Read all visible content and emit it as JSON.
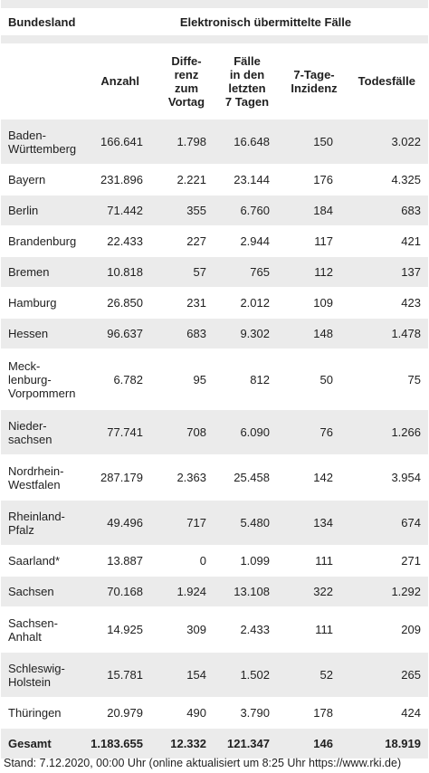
{
  "header": {
    "col0": "Bundesland",
    "group": "Elektronisch übermittelte Fälle",
    "col1": "Anzahl",
    "col2": "Differenz zum Vortag",
    "col2_lines": [
      "Diffe-",
      "renz",
      "zum",
      "Vortag"
    ],
    "col3": "Fälle in den letzten 7 Tagen",
    "col3_lines": [
      "Fälle",
      "in den",
      "letzten",
      "7 Tagen"
    ],
    "col4": "7-Tage-Inzidenz",
    "col4_lines": [
      "7-Tage-",
      "Inzidenz"
    ],
    "col5": "Todesfälle"
  },
  "rows": [
    {
      "name": "Baden-Württemberg",
      "name_lines": [
        "Baden-",
        "Württemberg"
      ],
      "anzahl": "166.641",
      "diff": "1.798",
      "f7": "16.648",
      "inz": "150",
      "tod": "3.022"
    },
    {
      "name": "Bayern",
      "name_lines": [
        "Bayern"
      ],
      "anzahl": "231.896",
      "diff": "2.221",
      "f7": "23.144",
      "inz": "176",
      "tod": "4.325"
    },
    {
      "name": "Berlin",
      "name_lines": [
        "Berlin"
      ],
      "anzahl": "71.442",
      "diff": "355",
      "f7": "6.760",
      "inz": "184",
      "tod": "683"
    },
    {
      "name": "Brandenburg",
      "name_lines": [
        "Brandenburg"
      ],
      "anzahl": "22.433",
      "diff": "227",
      "f7": "2.944",
      "inz": "117",
      "tod": "421"
    },
    {
      "name": "Bremen",
      "name_lines": [
        "Bremen"
      ],
      "anzahl": "10.818",
      "diff": "57",
      "f7": "765",
      "inz": "112",
      "tod": "137"
    },
    {
      "name": "Hamburg",
      "name_lines": [
        "Hamburg"
      ],
      "anzahl": "26.850",
      "diff": "231",
      "f7": "2.012",
      "inz": "109",
      "tod": "423"
    },
    {
      "name": "Hessen",
      "name_lines": [
        "Hessen"
      ],
      "anzahl": "96.637",
      "diff": "683",
      "f7": "9.302",
      "inz": "148",
      "tod": "1.478"
    },
    {
      "name": "Meck-lenburg-Vorpommern",
      "name_lines": [
        "Meck-",
        "lenburg-",
        "Vorpommern"
      ],
      "anzahl": "6.782",
      "diff": "95",
      "f7": "812",
      "inz": "50",
      "tod": "75"
    },
    {
      "name": "Nieder-sachsen",
      "name_lines": [
        "Nieder-",
        "sachsen"
      ],
      "anzahl": "77.741",
      "diff": "708",
      "f7": "6.090",
      "inz": "76",
      "tod": "1.266"
    },
    {
      "name": "Nordrhein-Westfalen",
      "name_lines": [
        "Nordrhein-",
        "Westfalen"
      ],
      "anzahl": "287.179",
      "diff": "2.363",
      "f7": "25.458",
      "inz": "142",
      "tod": "3.954"
    },
    {
      "name": "Rheinland-Pfalz",
      "name_lines": [
        "Rheinland-",
        "Pfalz"
      ],
      "anzahl": "49.496",
      "diff": "717",
      "f7": "5.480",
      "inz": "134",
      "tod": "674"
    },
    {
      "name": "Saarland*",
      "name_lines": [
        "Saarland*"
      ],
      "anzahl": "13.887",
      "diff": "0",
      "f7": "1.099",
      "inz": "111",
      "tod": "271"
    },
    {
      "name": "Sachsen",
      "name_lines": [
        "Sachsen"
      ],
      "anzahl": "70.168",
      "diff": "1.924",
      "f7": "13.108",
      "inz": "322",
      "tod": "1.292"
    },
    {
      "name": "Sachsen-Anhalt",
      "name_lines": [
        "Sachsen-",
        "Anhalt"
      ],
      "anzahl": "14.925",
      "diff": "309",
      "f7": "2.433",
      "inz": "111",
      "tod": "209"
    },
    {
      "name": "Schleswig-Holstein",
      "name_lines": [
        "Schleswig-",
        "Holstein"
      ],
      "anzahl": "15.781",
      "diff": "154",
      "f7": "1.502",
      "inz": "52",
      "tod": "265"
    },
    {
      "name": "Thüringen",
      "name_lines": [
        "Thüringen"
      ],
      "anzahl": "20.979",
      "diff": "490",
      "f7": "3.790",
      "inz": "178",
      "tod": "424"
    }
  ],
  "total": {
    "name": "Gesamt",
    "anzahl": "1.183.655",
    "diff": "12.332",
    "f7": "121.347",
    "inz": "146",
    "tod": "18.919"
  },
  "footer": "Stand: 7.12.2020, 00:00 Uhr (online aktualisiert um 8:25 Uhr https://www.rki.de)",
  "colors": {
    "row_alt": "#ebebeb",
    "row_base": "#ffffff",
    "text": "#1f1f1f"
  }
}
